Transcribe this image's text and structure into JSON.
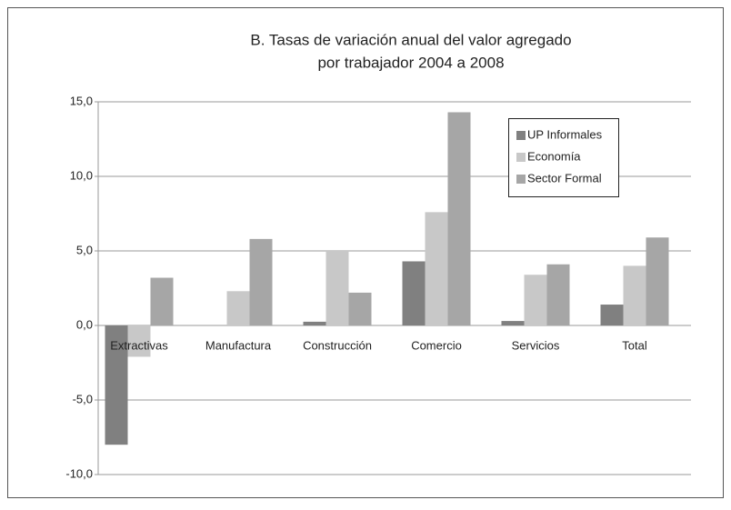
{
  "chart_data": {
    "type": "bar",
    "title": [
      "B. Tasas de variación anual del valor agregado",
      "por trabajador 2004 a 2008"
    ],
    "categories": [
      "Extractivas",
      "Manufactura",
      "Construcción",
      "Comercio",
      "Servicios",
      "Total"
    ],
    "series": [
      {
        "name": "UP Informales",
        "color": "#808080",
        "values": [
          -8.0,
          0,
          0.25,
          4.3,
          0.3,
          1.4
        ]
      },
      {
        "name": "Economía",
        "color": "#c8c8c8",
        "values": [
          -2.1,
          2.3,
          5.0,
          7.6,
          3.4,
          4.0
        ]
      },
      {
        "name": "Sector Formal",
        "color": "#a6a6a6",
        "values": [
          3.2,
          5.8,
          2.2,
          14.3,
          4.1,
          5.9
        ]
      }
    ],
    "ylim": [
      -10,
      15
    ],
    "yticks": [
      {
        "value": -10,
        "label": "-10,0"
      },
      {
        "value": -5,
        "label": "-5,0"
      },
      {
        "value": 0,
        "label": "0,0"
      },
      {
        "value": 5,
        "label": "5,0"
      },
      {
        "value": 10,
        "label": "10,0"
      },
      {
        "value": 15,
        "label": "15,0"
      }
    ],
    "grid": true,
    "legend": "upper-right"
  }
}
